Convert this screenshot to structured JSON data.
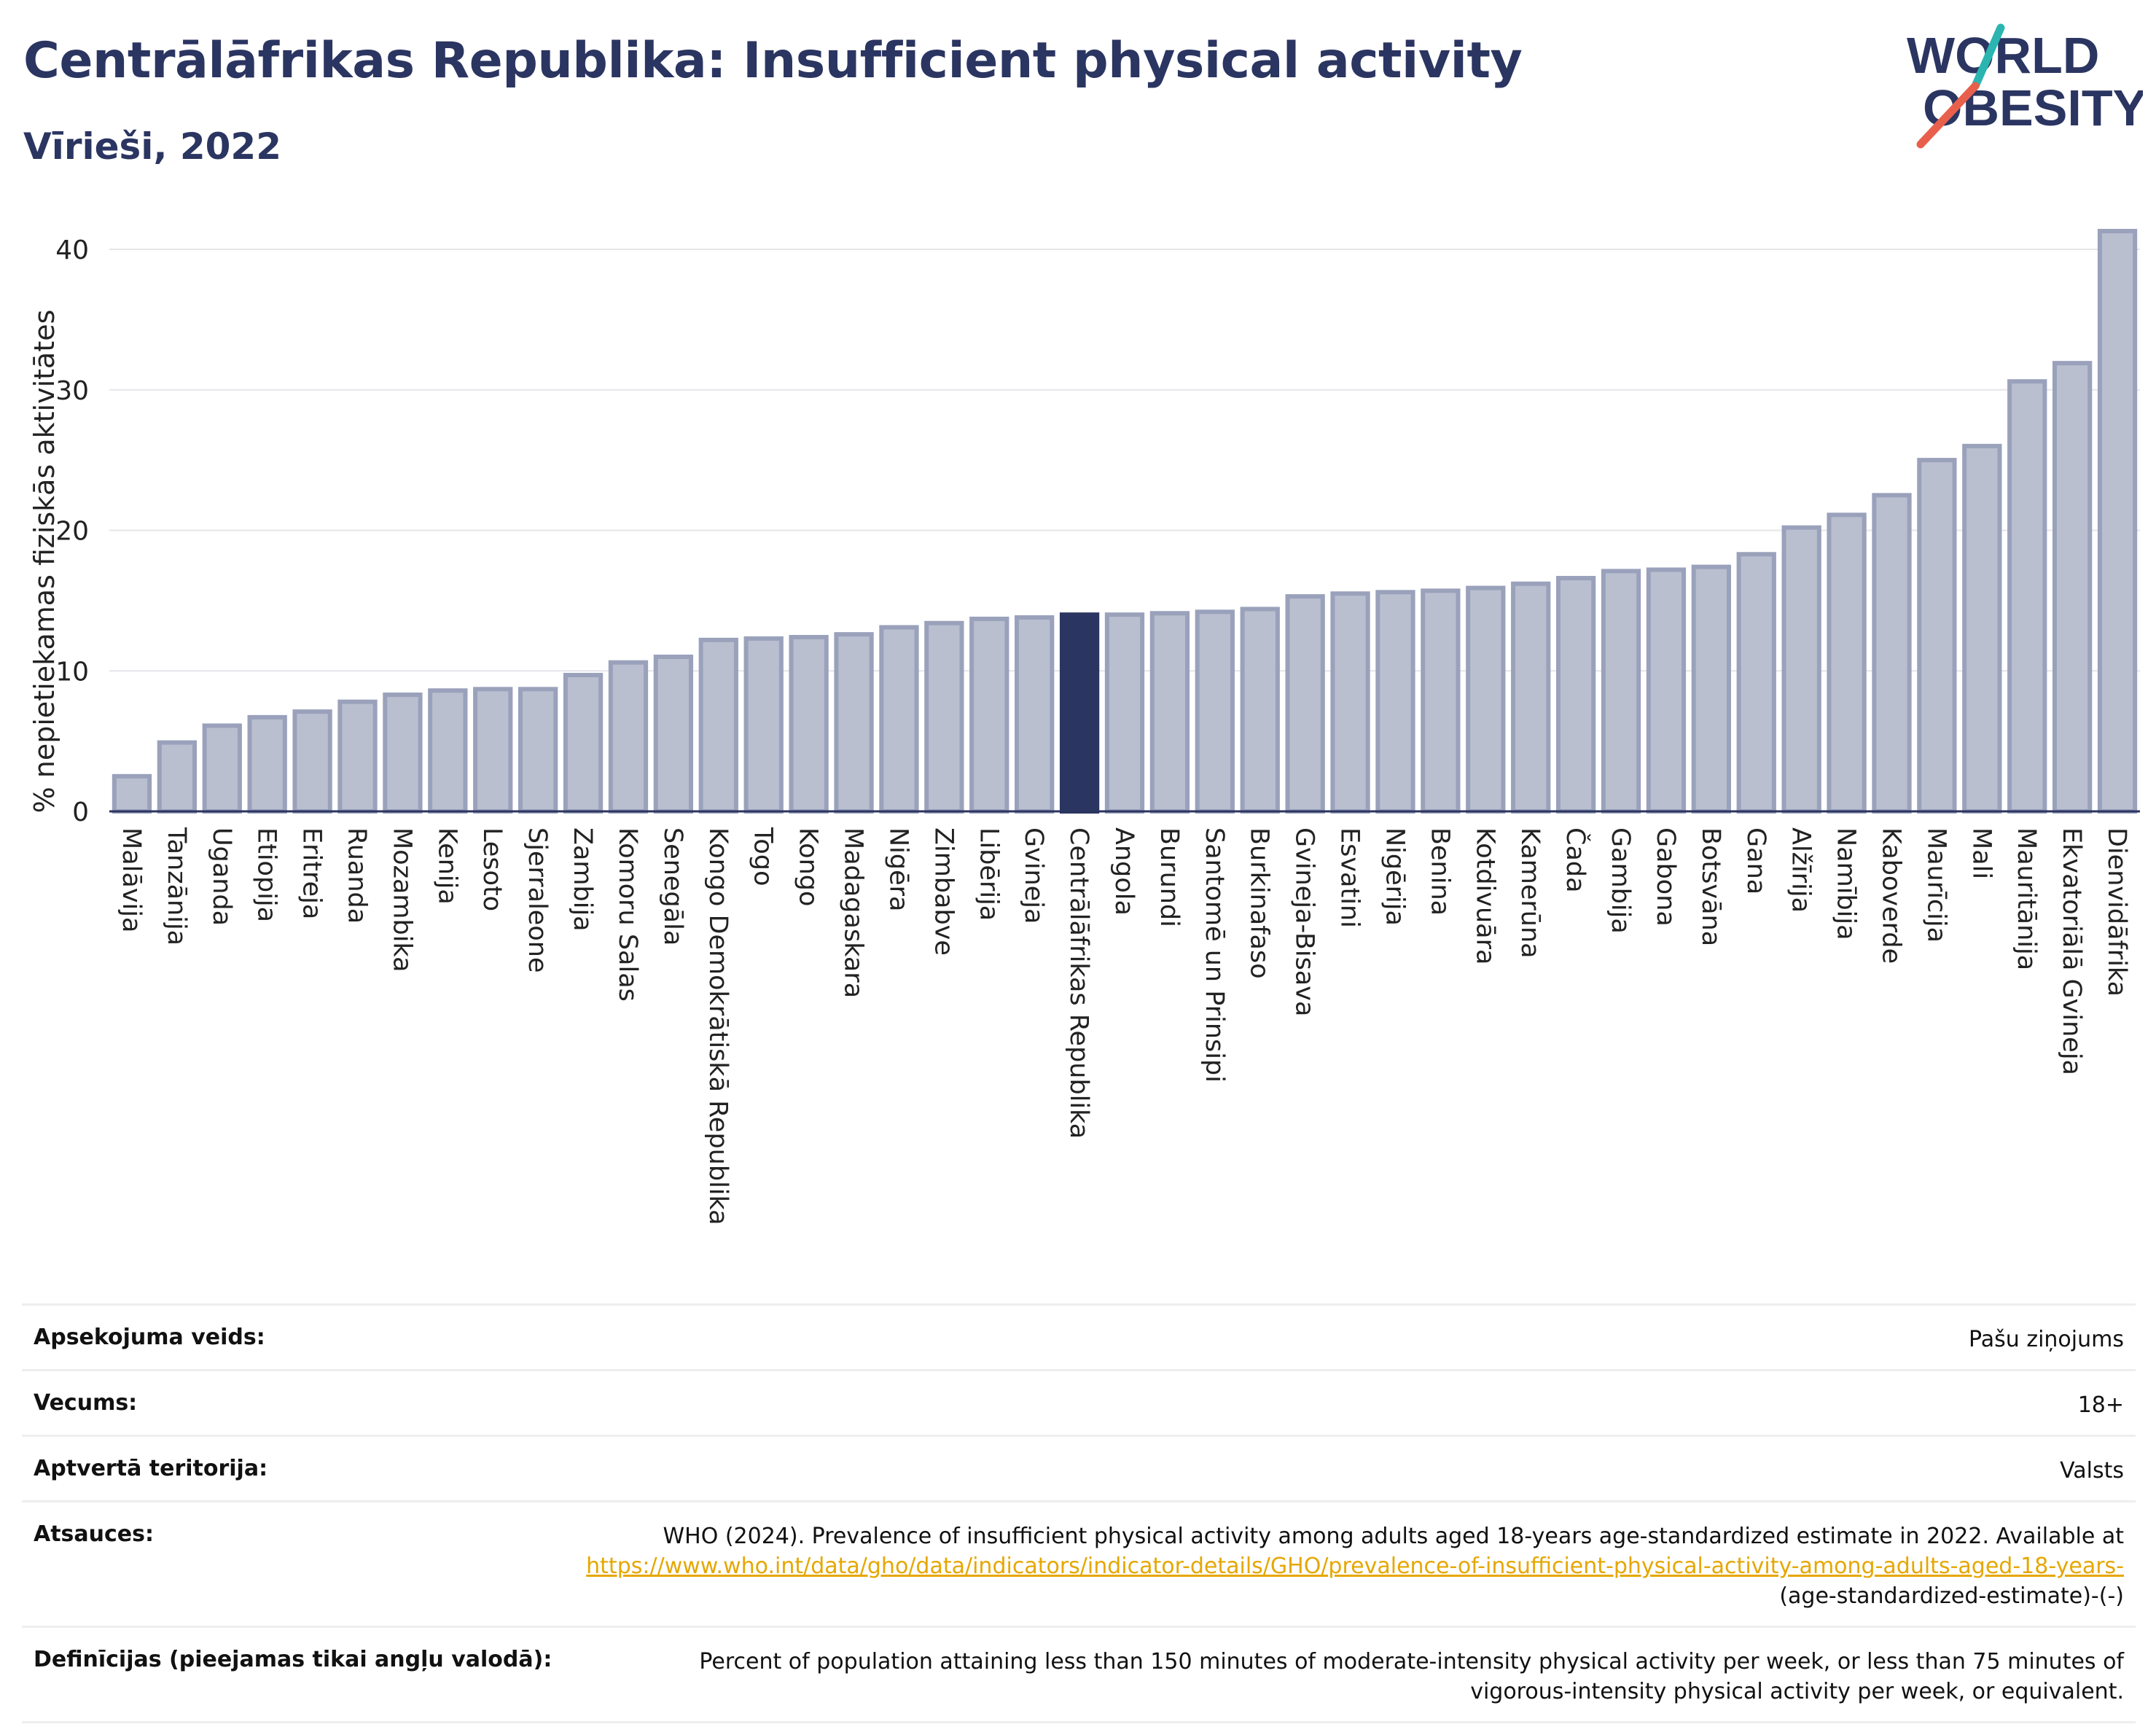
{
  "header": {
    "title": "Centrālāfrikas Republika: Insufficient physical activity",
    "subtitle": "Vīrieši, 2022"
  },
  "logo": {
    "line1": "WORLD",
    "line2": "OBESITY"
  },
  "colors": {
    "bar": "#b9bfcf",
    "bar_stroke": "#9aa1bb",
    "highlight": "#2b3561",
    "title": "#2b3561",
    "link": "#e5a700"
  },
  "chart_data": {
    "type": "bar",
    "ylabel": "% nepietiekamas fiziskās aktivitātes",
    "ylim": [
      0,
      42
    ],
    "yticks": [
      0,
      10,
      20,
      30,
      40
    ],
    "grid": true,
    "highlight": "Centrālāfrikas Republika",
    "categories": [
      "Malāvija",
      "Tanzānija",
      "Uganda",
      "Etiopija",
      "Eritreja",
      "Ruanda",
      "Mozambika",
      "Kenija",
      "Lesoto",
      "Sjerraleone",
      "Zambija",
      "Komoru Salas",
      "Senegāla",
      "Kongo Demokrātiskā Republika",
      "Togo",
      "Kongo",
      "Madagaskara",
      "Nigēra",
      "Zimbabve",
      "Libērija",
      "Gvineja",
      "Centrālāfrikas Republika",
      "Angola",
      "Burundi",
      "Santomē un Prinsipi",
      "Burkinafaso",
      "Gvineja-Bisava",
      "Esvatini",
      "Nigērija",
      "Benina",
      "Kotdivuāra",
      "Kamerūna",
      "Čada",
      "Gambija",
      "Gabona",
      "Botsvāna",
      "Gana",
      "Alžīrija",
      "Namībija",
      "Kaboverde",
      "Maurīcija",
      "Mali",
      "Mauritānija",
      "Ekvatoriālā Gvineja",
      "Dienvidāfrika"
    ],
    "values": [
      2.5,
      4.9,
      6.1,
      6.7,
      7.1,
      7.8,
      8.3,
      8.6,
      8.7,
      8.7,
      9.7,
      10.6,
      11.0,
      12.2,
      12.3,
      12.4,
      12.6,
      13.1,
      13.4,
      13.7,
      13.8,
      14.0,
      14.0,
      14.1,
      14.2,
      14.4,
      15.3,
      15.5,
      15.6,
      15.7,
      15.9,
      16.2,
      16.6,
      17.1,
      17.2,
      17.4,
      18.3,
      20.2,
      21.1,
      22.5,
      25.0,
      26.0,
      30.6,
      31.9,
      41.3
    ]
  },
  "info": {
    "survey_label": "Apsekojuma veids:",
    "survey_value": "Pašu ziņojums",
    "age_label": "Vecums:",
    "age_value": "18+",
    "coverage_label": "Aptvertā teritorija:",
    "coverage_value": "Valsts",
    "refs_label": "Atsauces:",
    "refs_text": "WHO (2024). Prevalence of insufficient physical activity among adults aged 18-years age-standardized estimate in 2022. Available at",
    "refs_link": "https://www.who.int/data/gho/data/indicators/indicator-details/GHO/prevalence-of-insufficient-physical-activity-among-adults-aged-18-years-",
    "refs_tail": "(age-standardized-estimate)-(-)",
    "defs_label": "Definīcijas (pieejamas tikai angļu valodā):",
    "defs_value": "Percent of population attaining less than 150 minutes of moderate-intensity physical activity per week, or less than 75 minutes of vigorous-intensity physical activity per week, or equivalent."
  }
}
